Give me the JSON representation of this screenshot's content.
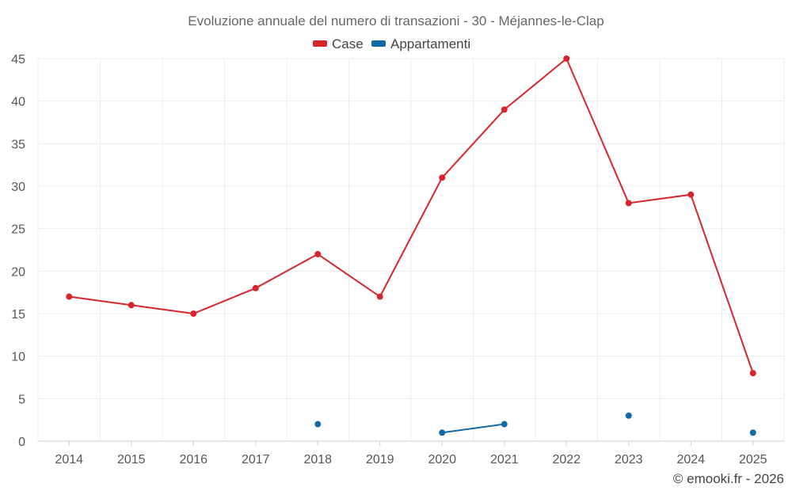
{
  "chart_data": {
    "type": "line",
    "title": "Evoluzione annuale del numero di transazioni - 30 - Méjannes-le-Clap",
    "categories": [
      "2014",
      "2015",
      "2016",
      "2017",
      "2018",
      "2019",
      "2020",
      "2021",
      "2022",
      "2023",
      "2024",
      "2025"
    ],
    "series": [
      {
        "name": "Case",
        "color": "#d7262b",
        "values": [
          17,
          16,
          15,
          18,
          22,
          17,
          31,
          39,
          45,
          28,
          29,
          8
        ]
      },
      {
        "name": "Appartamenti",
        "color": "#0f6aa6",
        "values": [
          null,
          null,
          null,
          null,
          2,
          null,
          1,
          2,
          null,
          3,
          null,
          1
        ]
      }
    ],
    "ylim": [
      0,
      45
    ],
    "yticks": [
      "0",
      "5",
      "10",
      "15",
      "20",
      "25",
      "30",
      "35",
      "40",
      "45"
    ],
    "grid": true,
    "legend": "top-center",
    "credit": "© emooki.fr - 2026"
  }
}
